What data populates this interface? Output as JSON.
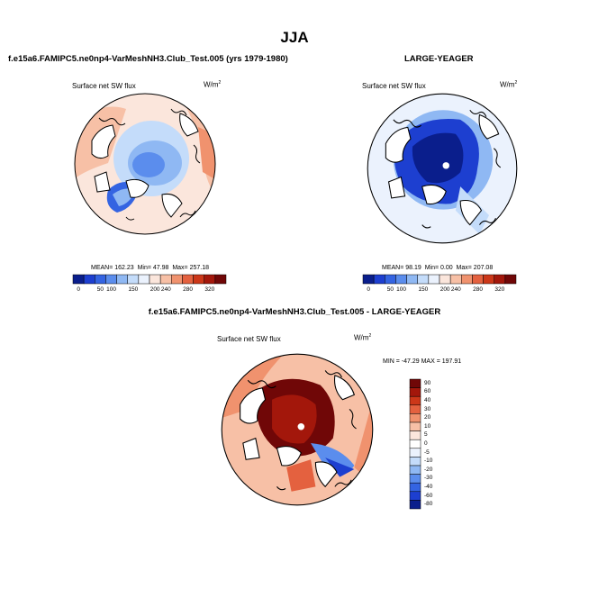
{
  "figure": {
    "main_title": "JJA"
  },
  "colors": {
    "seq_palette": [
      "#0a1e8c",
      "#1d3fd0",
      "#3464e2",
      "#5b8ded",
      "#8fb8f3",
      "#c4dcfa",
      "#ebf2fd",
      "#fbe6dc",
      "#f7c0a6",
      "#f0926e",
      "#e4613f",
      "#cc3719",
      "#a3170b",
      "#700707"
    ],
    "diff_palette": [
      "#0a1e8c",
      "#1d3fd0",
      "#3464e2",
      "#5b8ded",
      "#8fb8f3",
      "#c4dcfa",
      "#ebf2fd",
      "#ffffff",
      "#fbe6dc",
      "#f7c0a6",
      "#f0926e",
      "#e4613f",
      "#cc3719",
      "#a3170b",
      "#700707"
    ],
    "land": "#ffffff",
    "coast": "#000000"
  },
  "chart_data": [
    {
      "type": "heatmap",
      "projection": "north-polar-stereographic",
      "title": "f.e15a6.FAMIPC5.ne0np4-VarMeshNH3.Club_Test.005 (yrs 1979-1980)",
      "variable": "Surface net SW flux",
      "units_base": "W/m",
      "units_sup": "2",
      "stats": {
        "mean_label": "MEAN=",
        "mean": "162.23",
        "min_label": "Min=",
        "min": "47.98",
        "max_label": "Max=",
        "max": "257.18"
      },
      "colorbar": {
        "orientation": "horizontal",
        "labels": [
          "0",
          "50",
          "100",
          "150",
          "200",
          "240",
          "280",
          "320"
        ]
      }
    },
    {
      "type": "heatmap",
      "projection": "north-polar-stereographic",
      "title": "LARGE-YEAGER",
      "variable": "Surface net SW flux",
      "units_base": "W/m",
      "units_sup": "2",
      "stats": {
        "mean_label": "MEAN=",
        "mean": "98.19",
        "min_label": "Min=",
        "min": "0.00",
        "max_label": "Max=",
        "max": "207.08"
      },
      "colorbar": {
        "orientation": "horizontal",
        "labels": [
          "0",
          "50",
          "100",
          "150",
          "200",
          "240",
          "280",
          "320"
        ]
      }
    },
    {
      "type": "heatmap",
      "projection": "north-polar-stereographic",
      "title": "f.e15a6.FAMIPC5.ne0np4-VarMeshNH3.Club_Test.005 - LARGE-YEAGER",
      "variable": "Surface net SW flux",
      "units_base": "W/m",
      "units_sup": "2",
      "stats_text": "MIN = -47.29 MAX = 197.91",
      "colorbar": {
        "orientation": "vertical",
        "labels": [
          "90",
          "60",
          "40",
          "30",
          "20",
          "10",
          "5",
          "0",
          "-5",
          "-10",
          "-20",
          "-30",
          "-40",
          "-60",
          "-80"
        ]
      }
    }
  ]
}
